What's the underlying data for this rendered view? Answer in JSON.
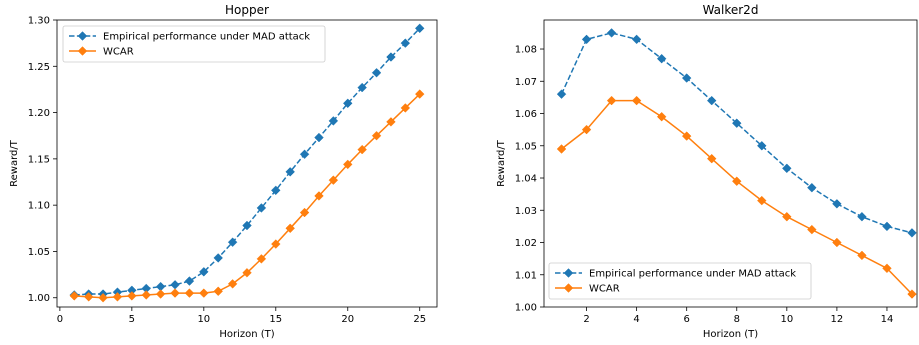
{
  "chart_data": [
    {
      "type": "line",
      "title": "Hopper",
      "xlabel": "Horizon (T)",
      "ylabel": "Reward/T",
      "xlim": [
        -0.2,
        26.2
      ],
      "ylim": [
        0.99,
        1.3
      ],
      "xticks": [
        0,
        5,
        10,
        15,
        20,
        25
      ],
      "yticks": [
        1.0,
        1.05,
        1.1,
        1.15,
        1.2,
        1.25,
        1.3
      ],
      "grid": false,
      "legend_position": "upper-left",
      "x": [
        1,
        2,
        3,
        4,
        5,
        6,
        7,
        8,
        9,
        10,
        11,
        12,
        13,
        14,
        15,
        16,
        17,
        18,
        19,
        20,
        21,
        22,
        23,
        24,
        25
      ],
      "series": [
        {
          "name": "Empirical performance under MAD attack",
          "color": "#1f77b4",
          "linestyle": "dashed",
          "marker": "diamond",
          "values": [
            1.003,
            1.004,
            1.004,
            1.006,
            1.008,
            1.01,
            1.012,
            1.014,
            1.018,
            1.028,
            1.043,
            1.06,
            1.078,
            1.097,
            1.116,
            1.136,
            1.155,
            1.173,
            1.191,
            1.21,
            1.227,
            1.243,
            1.26,
            1.275,
            1.291
          ]
        },
        {
          "name": "WCAR",
          "color": "#ff7f0e",
          "linestyle": "solid",
          "marker": "diamond",
          "values": [
            1.002,
            1.001,
            1.0,
            1.001,
            1.002,
            1.003,
            1.004,
            1.005,
            1.005,
            1.005,
            1.007,
            1.015,
            1.027,
            1.042,
            1.058,
            1.075,
            1.092,
            1.11,
            1.127,
            1.144,
            1.16,
            1.175,
            1.19,
            1.205,
            1.22
          ]
        }
      ]
    },
    {
      "type": "line",
      "title": "Walker2d",
      "xlabel": "Horizon (T)",
      "ylabel": "Reward/T",
      "xlim": [
        0.3,
        15.2
      ],
      "ylim": [
        1.0,
        1.089
      ],
      "xticks": [
        2,
        4,
        6,
        8,
        10,
        12,
        14
      ],
      "yticks": [
        1.0,
        1.01,
        1.02,
        1.03,
        1.04,
        1.05,
        1.06,
        1.07,
        1.08
      ],
      "grid": false,
      "legend_position": "lower-left",
      "x": [
        1,
        2,
        3,
        4,
        5,
        6,
        7,
        8,
        9,
        10,
        11,
        12,
        13,
        14,
        15
      ],
      "series": [
        {
          "name": "Empirical performance under MAD attack",
          "color": "#1f77b4",
          "linestyle": "dashed",
          "marker": "diamond",
          "values": [
            1.066,
            1.083,
            1.085,
            1.083,
            1.077,
            1.071,
            1.064,
            1.057,
            1.05,
            1.043,
            1.037,
            1.032,
            1.028,
            1.025,
            1.023
          ]
        },
        {
          "name": "WCAR",
          "color": "#ff7f0e",
          "linestyle": "solid",
          "marker": "diamond",
          "values": [
            1.049,
            1.055,
            1.064,
            1.064,
            1.059,
            1.053,
            1.046,
            1.039,
            1.033,
            1.028,
            1.024,
            1.02,
            1.016,
            1.012,
            1.004
          ]
        }
      ]
    }
  ]
}
